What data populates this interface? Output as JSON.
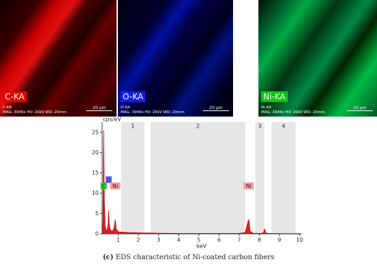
{
  "maps": [
    {
      "label": "C-KA",
      "sub": "C-KA",
      "info": "MAG: 3946x HV: 20kV WD: 20mm",
      "scale": "20 µm"
    },
    {
      "label": "O-KA",
      "sub": "O-KA",
      "info": "MAG: 3946x HV: 20kV WD: 20mm",
      "scale": "20 µm"
    },
    {
      "label": "Ni-KA",
      "sub": "Ni-KA",
      "info": "MAG: 3946x HV: 20kV WD: 20mm",
      "scale": "20 µm"
    }
  ],
  "chart_data": {
    "type": "area",
    "ylabel": "cps/eV",
    "xlabel": "keV",
    "color": "#cc0000",
    "x": [
      0.2,
      0.24,
      0.277,
      0.31,
      0.35,
      0.4,
      0.45,
      0.5,
      0.525,
      0.55,
      0.6,
      0.7,
      0.8,
      0.85,
      0.9,
      1.0,
      1.5,
      2.0,
      2.5,
      3,
      4,
      5,
      6,
      7,
      7.3,
      7.45,
      7.48,
      7.55,
      7.7,
      8.0,
      8.2,
      8.26,
      8.32,
      8.5,
      9,
      10,
      10.1
    ],
    "values": [
      0,
      3,
      25.5,
      8,
      2,
      1,
      0.7,
      2.5,
      5.8,
      2.5,
      1,
      0.6,
      1.5,
      3.5,
      1.2,
      0.5,
      0.3,
      0.25,
      0.2,
      0.15,
      0.1,
      0.1,
      0.1,
      0.1,
      0.3,
      3.3,
      3.5,
      0.6,
      0.15,
      0.1,
      0.2,
      1.2,
      0.2,
      0.1,
      0.05,
      0.05,
      0
    ],
    "xlim": [
      0.2,
      10.1
    ],
    "ylim": [
      0,
      27.5
    ],
    "xticks": [
      1,
      2,
      3,
      4,
      5,
      6,
      7,
      8,
      9,
      10
    ],
    "yticks": [
      0,
      5,
      10,
      15,
      20,
      25
    ],
    "regions": [
      {
        "label": "1",
        "range": [
          1.15,
          2.3
        ]
      },
      {
        "label": "2",
        "range": [
          2.6,
          7.3
        ]
      },
      {
        "label": "3",
        "range": [
          7.8,
          8.25
        ]
      },
      {
        "label": "4",
        "range": [
          8.6,
          9.8
        ]
      }
    ],
    "peak_labels": [
      {
        "label": "C",
        "x": 0.277,
        "color": "#2ecc40"
      },
      {
        "label": "O",
        "x": 0.525,
        "color": "#6a6aee"
      },
      {
        "label": "Ni",
        "x": 0.85,
        "color": "#f4a0a0"
      },
      {
        "label": "Ni",
        "x": 7.47,
        "color": "#f4a0a0"
      }
    ]
  },
  "caption": {
    "tag": "(c)",
    "text": "EDS characteristic of Ni-coated carbon fibers"
  }
}
